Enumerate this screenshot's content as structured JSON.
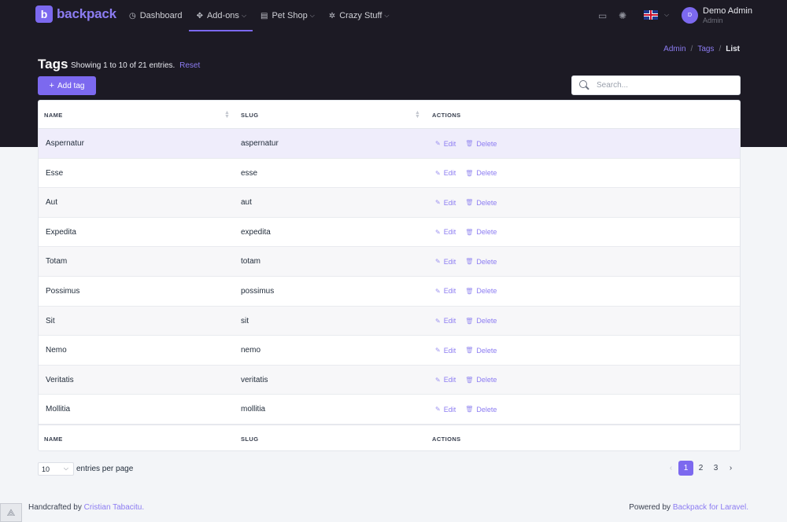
{
  "brand": {
    "logo_letter": "b",
    "name": "backpack"
  },
  "nav": {
    "items": [
      {
        "label": "Dashboard",
        "icon": "dashboard-icon",
        "glyph": "◷",
        "has_dropdown": false,
        "active": false
      },
      {
        "label": "Add-ons",
        "icon": "puzzle-icon",
        "glyph": "✥",
        "has_dropdown": true,
        "active": true
      },
      {
        "label": "Pet Shop",
        "icon": "cash-register-icon",
        "glyph": "▤",
        "has_dropdown": true,
        "active": false
      },
      {
        "label": "Crazy Stuff",
        "icon": "bug-icon",
        "glyph": "✲",
        "has_dropdown": true,
        "active": false
      }
    ]
  },
  "user": {
    "avatar_initial": "D",
    "name": "Demo Admin",
    "role": "Admin"
  },
  "breadcrumb": {
    "items": [
      "Admin",
      "Tags",
      "List"
    ],
    "separator": "/"
  },
  "header": {
    "title": "Tags",
    "subtitle": "Showing 1 to 10 of 21 entries.",
    "reset": "Reset",
    "add_button": "Add tag"
  },
  "search": {
    "placeholder": "Search...",
    "value": ""
  },
  "table": {
    "columns": [
      "NAME",
      "SLUG",
      "ACTIONS"
    ],
    "rows": [
      {
        "name": "Aspernatur",
        "slug": "aspernatur"
      },
      {
        "name": "Esse",
        "slug": "esse"
      },
      {
        "name": "Aut",
        "slug": "aut"
      },
      {
        "name": "Expedita",
        "slug": "expedita"
      },
      {
        "name": "Totam",
        "slug": "totam"
      },
      {
        "name": "Possimus",
        "slug": "possimus"
      },
      {
        "name": "Sit",
        "slug": "sit"
      },
      {
        "name": "Nemo",
        "slug": "nemo"
      },
      {
        "name": "Veritatis",
        "slug": "veritatis"
      },
      {
        "name": "Mollitia",
        "slug": "mollitia"
      }
    ],
    "edit_label": "Edit",
    "delete_label": "Delete"
  },
  "per_page": {
    "value": "10",
    "label": "entries per page"
  },
  "pagination": {
    "prev": "‹",
    "pages": [
      "1",
      "2",
      "3"
    ],
    "current": "1",
    "next": "›"
  },
  "footer": {
    "left_prefix": "Handcrafted by",
    "left_link": "Cristian Tabacitu.",
    "right_prefix": "Powered by",
    "right_link": "Backpack for Laravel."
  },
  "colors": {
    "accent": "#7c69ef",
    "navbar_bg": "#1c1a24",
    "highlight_row": "#efedfb"
  }
}
